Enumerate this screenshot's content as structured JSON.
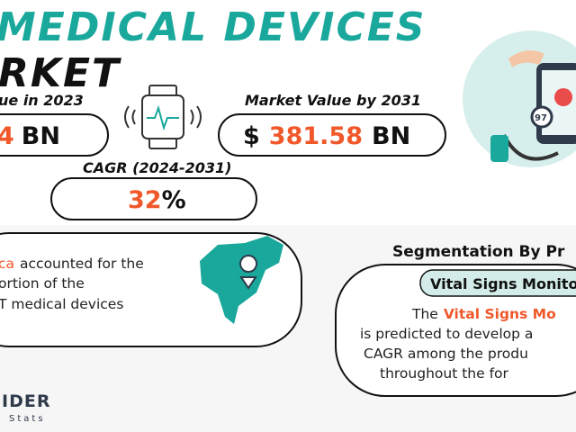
{
  "header": {
    "title_line1": "MEDICAL DEVICES",
    "title_line2": "RKET"
  },
  "stats": [
    {
      "label": "ue in 2023",
      "value": "4",
      "unit": "BN"
    },
    {
      "label": "Market Value by 2031",
      "prefix": "$",
      "value": "381.58",
      "unit": "BN"
    },
    {
      "label": "CAGR (2024-2031)",
      "value": "32",
      "unit": "%"
    }
  ],
  "region": {
    "line1": {
      "highlight": "ca",
      "text": "accounted for the"
    },
    "line2": "ortion of the",
    "line3": "T medical devices"
  },
  "segmentation": {
    "title": "Segmentation By Pr",
    "badge": "Vital Signs Monito",
    "line1": {
      "text": "The",
      "highlight": "Vital Signs Mo"
    },
    "line2": "is predicted to develop a",
    "line3": "CAGR among the produ",
    "line4": "throughout the for"
  },
  "logo": {
    "name": "IDER",
    "sub": "Stats"
  }
}
